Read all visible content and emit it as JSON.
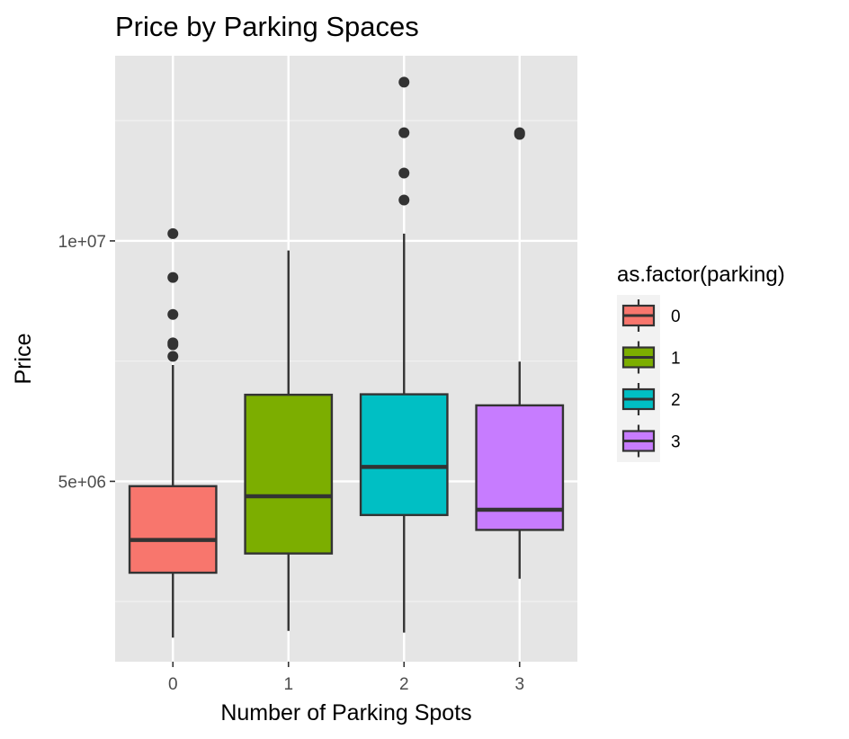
{
  "chart_data": {
    "type": "boxplot",
    "title": "Price by Parking Spaces",
    "xlabel": "Number of Parking Spots",
    "ylabel": "Price",
    "categories": [
      "0",
      "1",
      "2",
      "3"
    ],
    "ylim": [
      1250000,
      13850000
    ],
    "y_ticks": [
      {
        "value": 5000000,
        "label": "5e+06"
      },
      {
        "value": 10000000,
        "label": "1e+07"
      }
    ],
    "y_minor_ticks": [
      2500000,
      7500000,
      12500000
    ],
    "grid": true,
    "background": "#e5e5e5",
    "legend": {
      "title": "as.factor(parking)",
      "position": "right",
      "entries": [
        "0",
        "1",
        "2",
        "3"
      ]
    },
    "boxes": [
      {
        "category": "0",
        "color": "#f8766d",
        "lower_whisker": 1750000,
        "q1": 3100000,
        "median": 3780000,
        "q3": 4900000,
        "upper_whisker": 7420000,
        "outliers": [
          7600000,
          7840000,
          7880000,
          8470000,
          9240000,
          10150000
        ]
      },
      {
        "category": "1",
        "color": "#7cae00",
        "lower_whisker": 1890000,
        "q1": 3500000,
        "median": 4690000,
        "q3": 6800000,
        "upper_whisker": 9800000,
        "outliers": []
      },
      {
        "category": "2",
        "color": "#00bfc4",
        "lower_whisker": 1855000,
        "q1": 4300000,
        "median": 5300000,
        "q3": 6810000,
        "upper_whisker": 10150000,
        "outliers": [
          10850000,
          11410000,
          12250000,
          13300000
        ]
      },
      {
        "category": "3",
        "color": "#c77cff",
        "lower_whisker": 2975000,
        "q1": 3990000,
        "median": 4410000,
        "q3": 6580000,
        "upper_whisker": 7490000,
        "outliers": [
          12215000,
          12250000
        ]
      }
    ]
  }
}
